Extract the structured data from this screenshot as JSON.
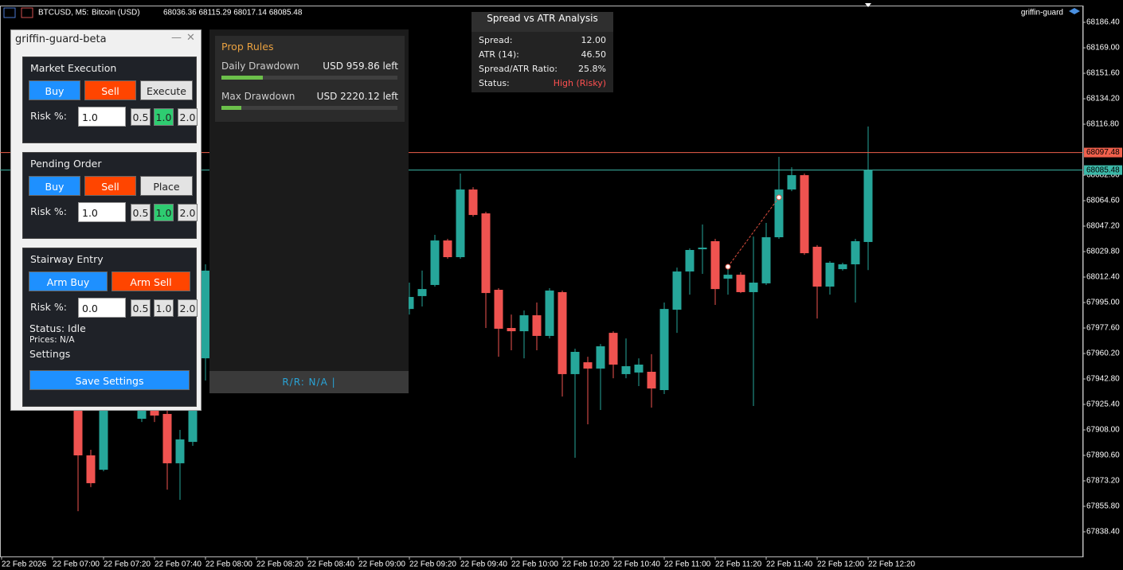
{
  "header": {
    "symbol": "BTCUSD, M5:",
    "description": "Bitcoin (USD)",
    "quote": "68036.36 68115.29 68017.14 68085.48",
    "ea_name": "griffin-guard"
  },
  "chart_data": {
    "type": "candlestick",
    "categories": [
      "22 Feb 2026",
      null,
      null,
      null,
      "22 Feb 07:00",
      null,
      null,
      null,
      "22 Feb 07:20",
      null,
      null,
      null,
      "22 Feb 07:40",
      null,
      null,
      null,
      "22 Feb 08:00",
      null,
      null,
      null,
      "22 Feb 08:20",
      null,
      null,
      null,
      "22 Feb 08:40",
      null,
      null,
      null,
      "22 Feb 09:00",
      null,
      null,
      null,
      "22 Feb 09:20",
      null,
      null,
      null,
      "22 Feb 09:40",
      null,
      null,
      null,
      "22 Feb 10:00",
      null,
      null,
      null,
      "22 Feb 10:20",
      null,
      null,
      null,
      "22 Feb 10:40",
      null,
      null,
      null,
      "22 Feb 11:00",
      null,
      null,
      null,
      "22 Feb 11:20",
      null,
      null,
      null,
      "22 Feb 11:40",
      null,
      null,
      null,
      "22 Feb 12:00",
      null,
      null,
      null,
      "22 Feb 12:20"
    ],
    "open": [
      null,
      null,
      null,
      null,
      null,
      null,
      67940.6,
      67890.6,
      67880.8,
      null,
      null,
      67915.6,
      67927.0,
      67918.9,
      67885.2,
      67899.8,
      67956.9,
      null,
      null,
      null,
      null,
      null,
      null,
      null,
      null,
      null,
      null,
      null,
      null,
      null,
      null,
      null,
      67990.6,
      67999.4,
      68007.0,
      68037.4,
      68026.0,
      68072.2,
      68055.9,
      68003.7,
      67977.6,
      67975.4,
      67986.3,
      67972.2,
      68002.1,
      67946.1,
      67954.2,
      67949.9,
      67974.3,
      67946.1,
      67947.2,
      67947.7,
      67935.2,
      67990.1,
      68016.2,
      68031.4,
      68036.9,
      68011.3,
      68014.0,
      68002.1,
      68008.1,
      68039.6,
      68072.2,
      68082.0,
      68033.1,
      68005.9,
      68017.8,
      68021.1,
      68036.36
    ],
    "high": [
      null,
      null,
      null,
      null,
      null,
      null,
      67951.5,
      67894.4,
      67940.6,
      null,
      null,
      67935.2,
      67932.5,
      67927.0,
      67908.0,
      67951.5,
      68021.1,
      null,
      null,
      null,
      null,
      null,
      null,
      null,
      null,
      null,
      null,
      null,
      null,
      null,
      null,
      null,
      68008.6,
      68016.8,
      68041.2,
      68038.5,
      68083.1,
      68073.8,
      68057.0,
      68004.8,
      67986.8,
      67989.6,
      67995.0,
      68004.8,
      68003.2,
      67963.5,
      67958.0,
      67966.7,
      67975.4,
      67970.5,
      67956.9,
      67959.7,
      67995.0,
      68018.9,
      68032.0,
      68048.3,
      68038.5,
      68018.4,
      68015.7,
      68040.1,
      68049.4,
      68094.5,
      68087.4,
      68083.1,
      68034.2,
      68023.3,
      68022.2,
      68038.5,
      68115.29
    ],
    "low": [
      null,
      null,
      null,
      null,
      null,
      null,
      67852.5,
      67868.9,
      67879.7,
      null,
      null,
      67913.4,
      67913.4,
      67867.2,
      67860.2,
      67897.1,
      67941.7,
      null,
      null,
      null,
      null,
      null,
      null,
      null,
      null,
      null,
      null,
      null,
      null,
      null,
      null,
      null,
      67986.8,
      67992.3,
      68005.9,
      68024.9,
      68024.9,
      68053.7,
      67977.6,
      67958.0,
      67962.4,
      67956.9,
      67962.4,
      67970.5,
      67930.8,
      67889.0,
      67911.8,
      67921.6,
      67943.3,
      67943.3,
      67937.9,
      67923.2,
      67932.5,
      67974.3,
      68000.4,
      68014.6,
      67993.4,
      68000.4,
      68001.5,
      67924.3,
      68007.0,
      68038.5,
      68071.1,
      68027.6,
      67984.1,
      68000.4,
      68016.8,
      67995.0,
      68017.14
    ],
    "close": [
      null,
      null,
      null,
      null,
      null,
      null,
      67890.6,
      67871.6,
      67935.2,
      null,
      null,
      67929.8,
      67917.8,
      67885.2,
      67901.5,
      67946.1,
      68016.8,
      null,
      null,
      null,
      null,
      null,
      null,
      null,
      null,
      null,
      null,
      null,
      null,
      null,
      null,
      null,
      67998.8,
      68004.2,
      68037.4,
      68026.0,
      68072.2,
      68054.8,
      68001.5,
      67977.1,
      67975.4,
      67986.3,
      67972.2,
      68003.2,
      67946.1,
      67961.3,
      67949.9,
      67965.1,
      67952.6,
      67951.5,
      67952.6,
      67936.3,
      67990.6,
      68016.2,
      68030.9,
      68032.5,
      68004.2,
      68014.0,
      68002.1,
      68008.6,
      68039.6,
      68072.2,
      68082.0,
      68028.7,
      68005.9,
      68022.2,
      68021.1,
      68036.9,
      68085.48
    ],
    "up_color": "#26a69a",
    "down_color": "#ef5350",
    "ask_line": 68097.48,
    "ask_color": "#f0604c",
    "bid_line": 68085.48,
    "bid_color": "#3cb8a8",
    "ylim": [
      67821.0,
      68197.3
    ],
    "yticks": [
      {
        "value": 68186.4,
        "label": "68186.40"
      },
      {
        "value": 68169.0,
        "label": "68169.00"
      },
      {
        "value": 68151.6,
        "label": "68151.60"
      },
      {
        "value": 68134.2,
        "label": "68134.20"
      },
      {
        "value": 68116.8,
        "label": "68116.80"
      },
      {
        "value": 68082.0,
        "label": "68082.00"
      },
      {
        "value": 68064.6,
        "label": "68064.60"
      },
      {
        "value": 68047.2,
        "label": "68047.20"
      },
      {
        "value": 68029.8,
        "label": "68029.80"
      },
      {
        "value": 68012.4,
        "label": "68012.40"
      },
      {
        "value": 67995.0,
        "label": "67995.00"
      },
      {
        "value": 67977.6,
        "label": "67977.60"
      },
      {
        "value": 67960.2,
        "label": "67960.20"
      },
      {
        "value": 67942.8,
        "label": "67942.80"
      },
      {
        "value": 67925.4,
        "label": "67925.40"
      },
      {
        "value": 67908.0,
        "label": "67908.00"
      },
      {
        "value": 67890.6,
        "label": "67890.60"
      },
      {
        "value": 67873.2,
        "label": "67873.20"
      },
      {
        "value": 67855.8,
        "label": "67855.80"
      },
      {
        "value": 67838.4,
        "label": "67838.40"
      }
    ],
    "grid": false
  },
  "panel": {
    "title": "griffin-guard-beta",
    "sections": [
      {
        "title": "Market Execution",
        "buttons": [
          "Buy",
          "Sell",
          "Execute"
        ],
        "risk_label": "Risk %:",
        "risk_value": "1.0",
        "presets": [
          "0.5",
          "1.0",
          "2.0"
        ]
      },
      {
        "title": "Pending Order",
        "buttons": [
          "Buy",
          "Sell",
          "Place"
        ],
        "risk_label": "Risk %:",
        "risk_value": "1.0",
        "presets": [
          "0.5",
          "1.0",
          "2.0"
        ]
      },
      {
        "title": "Stairway Entry",
        "buttons": [
          "Arm Buy",
          "Arm Sell"
        ],
        "risk_label": "Risk %:",
        "risk_value": "0.0",
        "presets": [
          "0.5",
          "1.0",
          "2.0"
        ]
      }
    ],
    "status": "Status: Idle",
    "prices": "Prices: N/A",
    "settings": "Settings",
    "save": "Save Settings"
  },
  "prop_rules": {
    "title": "Prop Rules",
    "rows": [
      {
        "label": "Daily Drawdown",
        "value": "USD 959.86 left"
      },
      {
        "label": "Max Drawdown",
        "value": "USD 2220.12 left"
      }
    ],
    "footer": "R/R: N/A |"
  },
  "spread_panel": {
    "title": "Spread vs ATR Analysis",
    "rows": [
      {
        "label": "Spread:",
        "value": "12.00"
      },
      {
        "label": "ATR (14):",
        "value": "46.50"
      },
      {
        "label": "Spread/ATR Ratio:",
        "value": "25.8%"
      },
      {
        "label": "Status:",
        "value": "High (Risky)"
      }
    ]
  }
}
